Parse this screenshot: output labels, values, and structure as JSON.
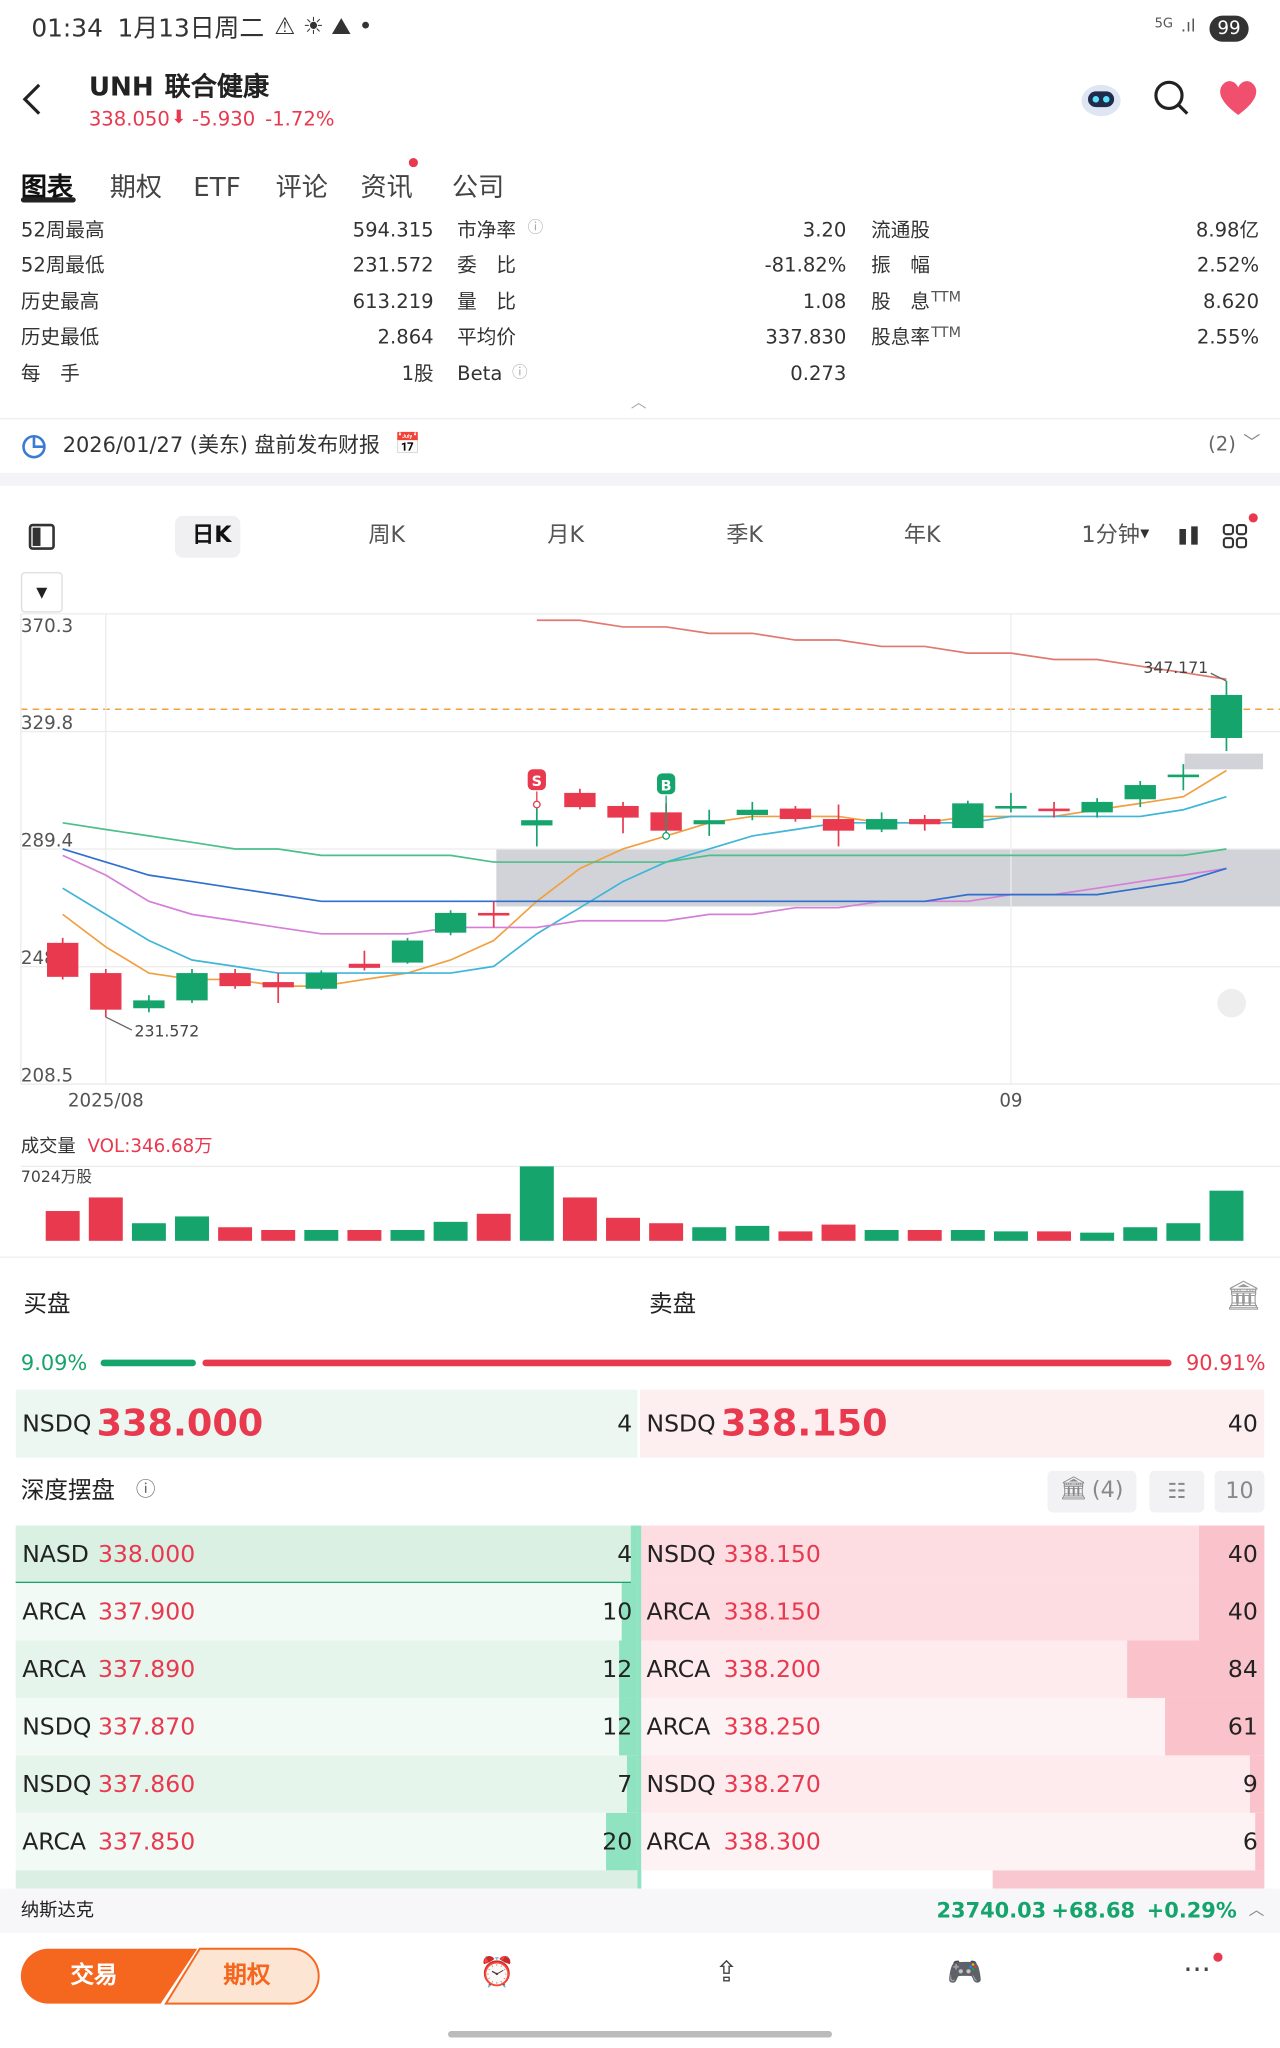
{
  "status_bar": {
    "time": "01:34",
    "date": "1月13日周二",
    "network": "5G",
    "battery": "99"
  },
  "header": {
    "symbol": "UNH",
    "name": "联合健康",
    "price": "338.050",
    "change": "-5.930",
    "change_pct": "-1.72%"
  },
  "tabs": [
    "图表",
    "期权",
    "ETF",
    "评论",
    "资讯",
    "公司"
  ],
  "stats": [
    [
      {
        "label": "52周最高",
        "value": "594.315"
      },
      {
        "label": "52周最低",
        "value": "231.572"
      },
      {
        "label": "历史最高",
        "value": "613.219"
      },
      {
        "label": "历史最低",
        "value": "2.864"
      },
      {
        "label": "每　手",
        "value": "1股"
      }
    ],
    [
      {
        "label": "市净率",
        "value": "3.20"
      },
      {
        "label": "委　比",
        "value": "-81.82%"
      },
      {
        "label": "量　比",
        "value": "1.08"
      },
      {
        "label": "平均价",
        "value": "337.830"
      },
      {
        "label": "Beta",
        "value": "0.273"
      }
    ],
    [
      {
        "label": "流通股",
        "value": "8.98亿"
      },
      {
        "label": "振　幅",
        "value": "2.52%"
      },
      {
        "label": "股　息",
        "sup": "TTM",
        "value": "8.620"
      },
      {
        "label": "股息率",
        "sup": "TTM",
        "value": "2.55%"
      }
    ]
  ],
  "earnings": {
    "text": "2026/01/27 (美东) 盘前发布财报",
    "count": "(2)"
  },
  "periods": [
    "日K",
    "周K",
    "月K",
    "季K",
    "年K",
    "1分钟"
  ],
  "chart_data": {
    "type": "candlestick",
    "categories": [
      null,
      "2025/08",
      null,
      null,
      null,
      null,
      null,
      null,
      null,
      null,
      null,
      null,
      null,
      null,
      null,
      null,
      null,
      null,
      null,
      null,
      null,
      null,
      "09",
      null,
      null,
      null,
      null,
      null
    ],
    "open": [
      257.1,
      246.7,
      234.6,
      237.3,
      246.7,
      243.6,
      241.3,
      249.9,
      250.3,
      260.6,
      267.4,
      297.5,
      308.7,
      304.2,
      302.0,
      297.9,
      301.1,
      303.3,
      299.7,
      296.1,
      299.7,
      296.6,
      303.3,
      303.3,
      302.0,
      306.5,
      314.1,
      327.6
    ],
    "high": [
      258.8,
      248.1,
      239.1,
      248.1,
      248.1,
      246.7,
      247.6,
      254.4,
      258.8,
      268.3,
      271.4,
      304.7,
      310.1,
      305.6,
      305.1,
      302.9,
      305.6,
      304.2,
      304.7,
      302.0,
      301.1,
      306.0,
      308.7,
      305.6,
      306.9,
      312.8,
      318.6,
      347.171
    ],
    "low": [
      244.5,
      231.572,
      233.2,
      236.4,
      241.3,
      236.4,
      240.9,
      247.6,
      249.9,
      259.7,
      262.4,
      290.3,
      303.0,
      294.8,
      293.9,
      293.9,
      299.3,
      298.8,
      290.3,
      295.2,
      295.7,
      296.6,
      302.0,
      300.2,
      300.2,
      303.8,
      309.6,
      323.1
    ],
    "close": [
      245.4,
      234.1,
      237.3,
      246.7,
      242.2,
      241.8,
      246.7,
      248.5,
      257.9,
      267.4,
      266.5,
      299.3,
      303.8,
      300.2,
      295.7,
      299.3,
      302.9,
      299.7,
      295.7,
      299.7,
      297.9,
      305.1,
      304.2,
      302.4,
      305.6,
      311.4,
      315.0,
      342.4
    ],
    "signals": [
      null,
      null,
      null,
      null,
      null,
      null,
      null,
      null,
      null,
      null,
      null,
      "S",
      null,
      null,
      "B",
      null,
      null,
      null,
      null,
      null,
      null,
      null,
      null,
      null,
      null,
      null,
      null,
      null
    ],
    "up_color": "#14a46c",
    "down_color": "#e8394f",
    "series": [
      {
        "color": "#f0a040",
        "values": [
          266.9,
          255.7,
          246.7,
          244.5,
          244.5,
          242.2,
          242.2,
          244.5,
          246.7,
          251.2,
          257.9,
          271.4,
          282.7,
          289.4,
          293.9,
          298.4,
          300.6,
          300.6,
          300.6,
          298.4,
          298.4,
          300.6,
          300.6,
          300.6,
          302.9,
          305.1,
          307.4,
          316.4
        ]
      },
      {
        "color": "#3fb6d8",
        "values": [
          275.9,
          266.9,
          257.9,
          251.2,
          249.0,
          246.7,
          246.7,
          246.7,
          246.7,
          246.7,
          249.0,
          260.2,
          269.2,
          278.2,
          284.9,
          289.4,
          293.9,
          296.1,
          298.4,
          298.4,
          298.4,
          298.4,
          300.6,
          300.6,
          300.6,
          300.6,
          302.9,
          307.4
        ]
      },
      {
        "color": "#d57fd8",
        "values": [
          287.2,
          280.4,
          271.4,
          266.9,
          264.7,
          262.4,
          260.2,
          260.2,
          260.2,
          262.4,
          262.4,
          262.4,
          264.7,
          264.7,
          264.7,
          266.9,
          266.9,
          269.2,
          269.2,
          271.4,
          271.4,
          271.4,
          273.7,
          273.7,
          275.9,
          278.2,
          280.4,
          282.7
        ]
      },
      {
        "color": "#4cbf8a",
        "values": [
          298.4,
          296.1,
          293.9,
          291.7,
          289.4,
          289.4,
          287.2,
          287.2,
          287.2,
          287.2,
          284.9,
          284.9,
          284.9,
          284.9,
          284.9,
          287.2,
          287.2,
          287.2,
          287.2,
          287.2,
          287.2,
          287.2,
          287.2,
          287.2,
          287.2,
          287.2,
          287.2,
          289.4
        ]
      },
      {
        "color": "#2f6fd0",
        "values": [
          289.4,
          284.9,
          280.4,
          278.2,
          275.9,
          273.7,
          271.4,
          271.4,
          271.4,
          271.4,
          271.4,
          271.4,
          271.4,
          271.4,
          271.4,
          271.4,
          271.4,
          271.4,
          271.4,
          271.4,
          271.4,
          273.7,
          273.7,
          273.7,
          273.7,
          275.9,
          278.2,
          282.7
        ]
      },
      {
        "color": "#e07a70",
        "values": [
          null,
          null,
          null,
          null,
          null,
          null,
          null,
          null,
          null,
          null,
          null,
          368.1,
          368.1,
          365.8,
          365.8,
          363.6,
          363.6,
          361.3,
          361.3,
          359.1,
          359.1,
          356.8,
          356.8,
          354.6,
          354.6,
          352.3,
          350.1,
          347.8
        ]
      }
    ],
    "ylim": [
      208.5,
      370.3
    ],
    "yticks": [
      208.5,
      248.9,
      289.4,
      329.8,
      370.3
    ],
    "grid": true,
    "volume": {
      "title": "成交量",
      "indicator": "VOL:346.68万",
      "values": [
        2810,
        4090,
        1660,
        2300,
        1280,
        1020,
        1020,
        1020,
        1020,
        1790,
        2550,
        7024,
        4090,
        2170,
        1660,
        1280,
        1410,
        890,
        1530,
        1020,
        1020,
        1020,
        890,
        890,
        770,
        1280,
        1660,
        4730
      ],
      "ylim": [
        0,
        7024
      ],
      "yticks": [
        {
          "value": 7024,
          "label": "7024万股"
        }
      ]
    }
  },
  "order_book": {
    "buy_label": "买盘",
    "sell_label": "卖盘",
    "buy_pct": "9.09%",
    "sell_pct": "90.91%",
    "best_bid": {
      "exchange": "NSDQ",
      "price": "338.000",
      "size": 4
    },
    "best_ask": {
      "exchange": "NSDQ",
      "price": "338.150",
      "size": 40
    },
    "depth_title": "深度摆盘",
    "depth_count": "(4)",
    "depth_levels": "10",
    "bids": [
      {
        "exchange": "NASD",
        "price": "338.000",
        "size": 4
      },
      {
        "exchange": "ARCA",
        "price": "337.900",
        "size": 10
      },
      {
        "exchange": "ARCA",
        "price": "337.890",
        "size": 12
      },
      {
        "exchange": "NSDQ",
        "price": "337.870",
        "size": 12
      },
      {
        "exchange": "NSDQ",
        "price": "337.860",
        "size": 7
      },
      {
        "exchange": "ARCA",
        "price": "337.850",
        "size": 20
      }
    ],
    "asks": [
      {
        "exchange": "NSDQ",
        "price": "338.150",
        "size": 40
      },
      {
        "exchange": "ARCA",
        "price": "338.150",
        "size": 40
      },
      {
        "exchange": "ARCA",
        "price": "338.200",
        "size": 84
      },
      {
        "exchange": "ARCA",
        "price": "338.250",
        "size": 61
      },
      {
        "exchange": "NSDQ",
        "price": "338.270",
        "size": 9
      },
      {
        "exchange": "ARCA",
        "price": "338.300",
        "size": 6
      }
    ]
  },
  "index_bar": {
    "name": "纳斯达克",
    "value": "23740.03",
    "change": "+68.68",
    "pct": "+0.29%"
  },
  "bottom_nav": {
    "trade": "交易",
    "options": "期权"
  }
}
